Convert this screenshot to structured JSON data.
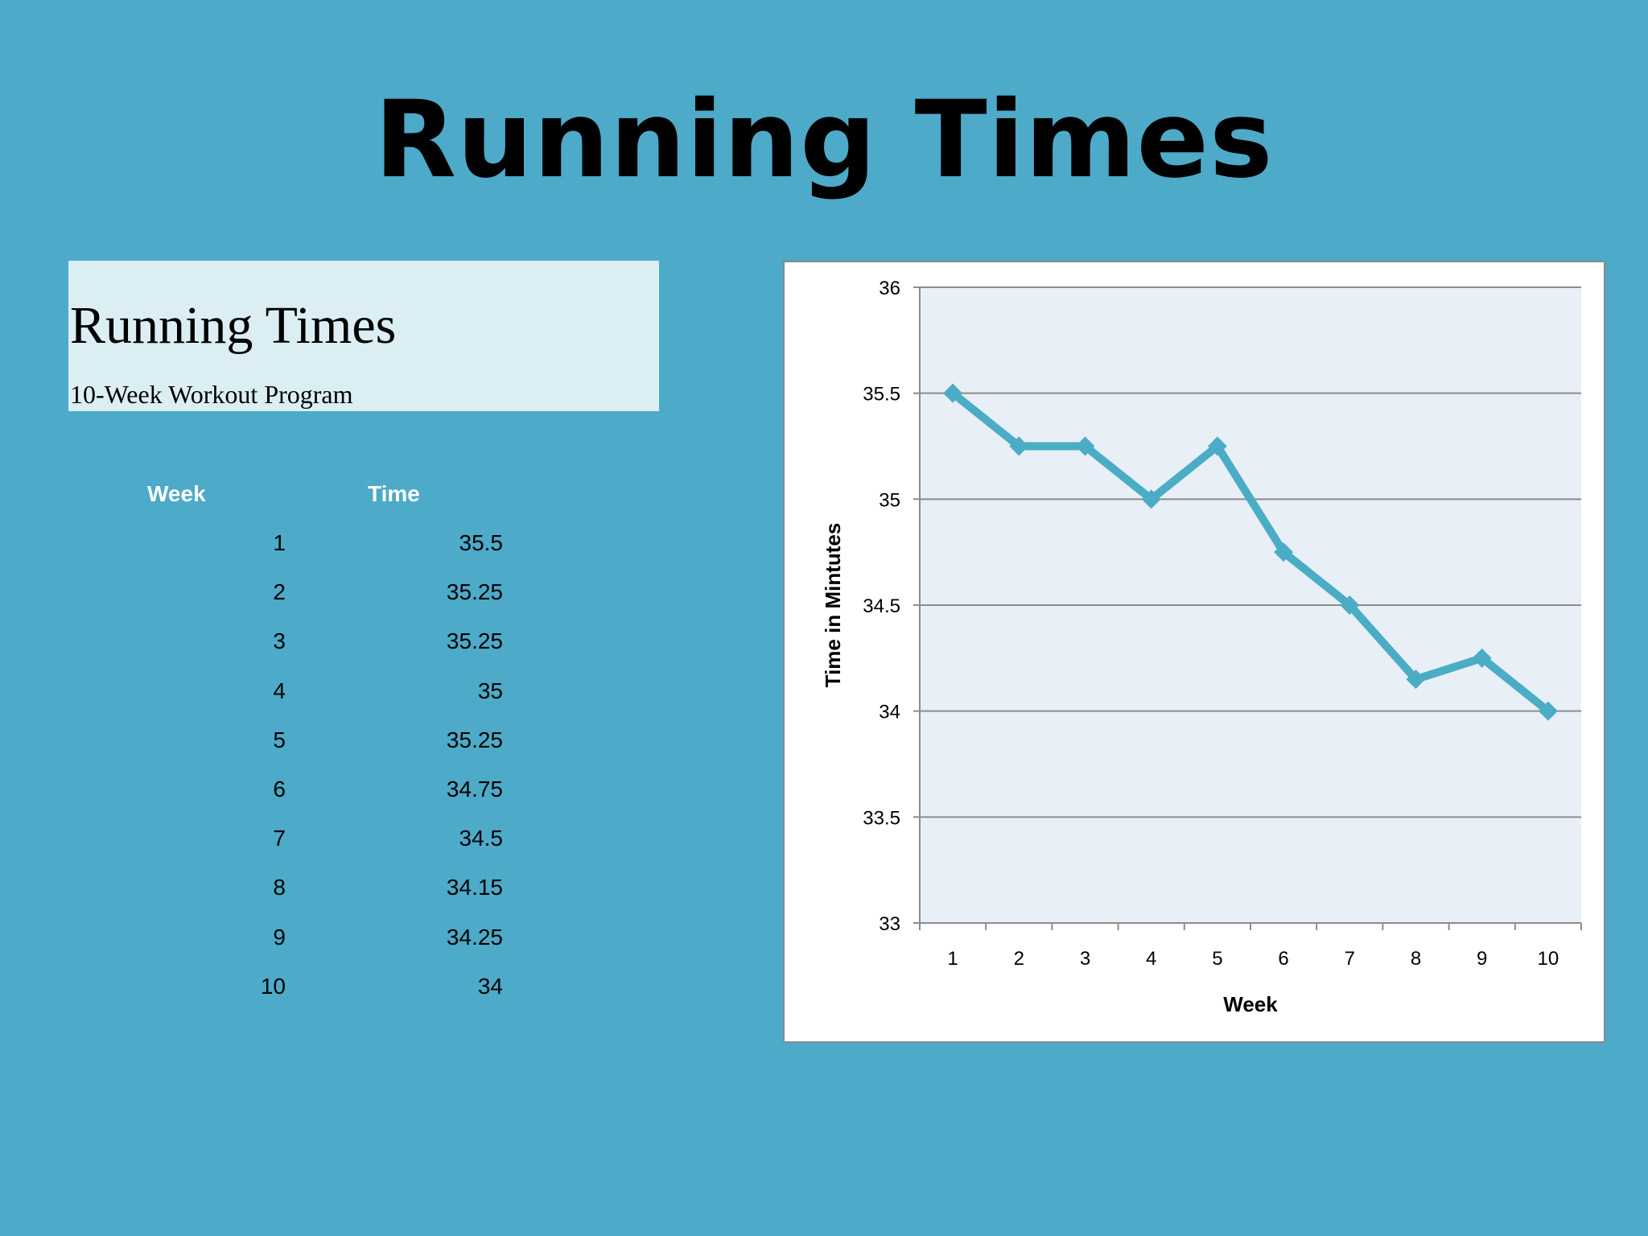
{
  "slide": {
    "title": "Running Times"
  },
  "sheet": {
    "title": "Running Times",
    "subtitle": "10-Week Workout Program",
    "columns": [
      "Week",
      "Time"
    ],
    "rows": [
      [
        "1",
        "35.5"
      ],
      [
        "2",
        "35.25"
      ],
      [
        "3",
        "35.25"
      ],
      [
        "4",
        "35"
      ],
      [
        "5",
        "35.25"
      ],
      [
        "6",
        "34.75"
      ],
      [
        "7",
        "34.5"
      ],
      [
        "8",
        "34.15"
      ],
      [
        "9",
        "34.25"
      ],
      [
        "10",
        "34"
      ]
    ]
  },
  "colors": {
    "background": "#4daac9",
    "series": "#4bacc6",
    "plot_area": "#e9eff6"
  },
  "chart_data": {
    "type": "line",
    "title": "",
    "xlabel": "Week",
    "ylabel": "Time in Mintutes",
    "categories": [
      "1",
      "2",
      "3",
      "4",
      "5",
      "6",
      "7",
      "8",
      "9",
      "10"
    ],
    "series": [
      {
        "values": [
          35.5,
          35.25,
          35.25,
          35,
          35.25,
          34.75,
          34.5,
          34.15,
          34.25,
          34
        ]
      }
    ],
    "ylim": [
      33,
      36
    ],
    "yticks": [
      "33",
      "33.5",
      "34",
      "34.5",
      "35",
      "35.5",
      "36"
    ],
    "grid": true,
    "legend": "none",
    "marker": "diamond"
  }
}
